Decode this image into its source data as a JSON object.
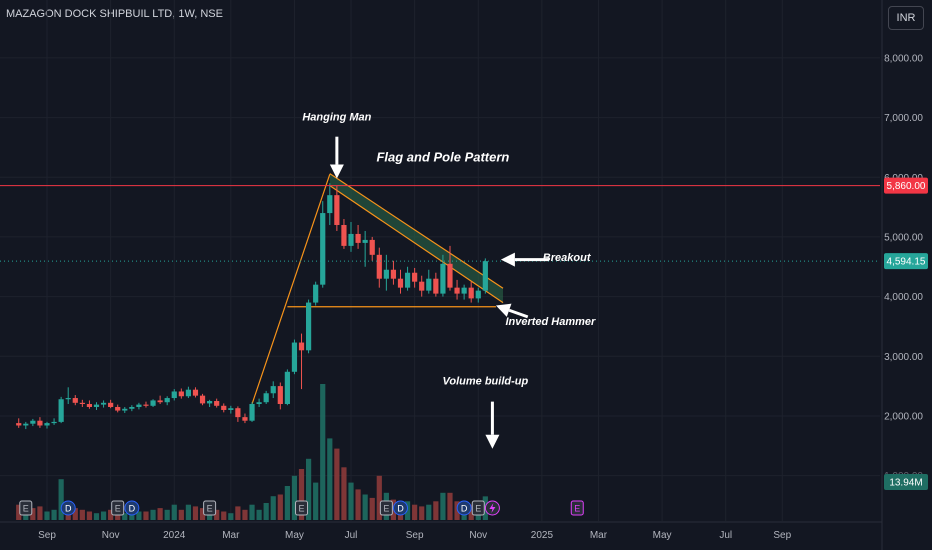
{
  "header": {
    "symbol_title": "MAZAGON DOCK SHIPBUIL LTD, 1W, NSE",
    "currency": "INR"
  },
  "colors": {
    "background": "#131722",
    "up": "#26a69a",
    "down": "#ef5350",
    "grid": "#1e222d",
    "resistance": "#f23645",
    "pattern": "#f7931a",
    "flag_fill": "#2b6b4a"
  },
  "chart_data": {
    "type": "candlestick",
    "interval": "1W",
    "ylim": [
      700,
      8500
    ],
    "y_ticks": [
      "8,000.00",
      "7,000.00",
      "6,000.00",
      "5,000.00",
      "4,000.00",
      "3,000.00",
      "2,000.00",
      "1,000.00"
    ],
    "x_tick_labels": [
      {
        "label": "Sep",
        "week": 0
      },
      {
        "label": "Nov",
        "week": 9
      },
      {
        "label": "2024",
        "week": 18
      },
      {
        "label": "Mar",
        "week": 26
      },
      {
        "label": "May",
        "week": 35
      },
      {
        "label": "Jul",
        "week": 43
      },
      {
        "label": "Sep",
        "week": 52
      },
      {
        "label": "Nov",
        "week": 61
      },
      {
        "label": "2025",
        "week": 70
      },
      {
        "label": "Mar",
        "week": 78
      },
      {
        "label": "May",
        "week": 87
      },
      {
        "label": "Jul",
        "week": 96
      },
      {
        "label": "Sep",
        "week": 104
      }
    ],
    "candles": [
      [
        -4,
        1880,
        1960,
        1800,
        1840
      ],
      [
        -3,
        1840,
        1900,
        1780,
        1870
      ],
      [
        -2,
        1870,
        1950,
        1830,
        1920
      ],
      [
        -1,
        1920,
        1980,
        1800,
        1840
      ],
      [
        0,
        1840,
        1900,
        1790,
        1880
      ],
      [
        1,
        1880,
        1960,
        1850,
        1900
      ],
      [
        2,
        1900,
        2320,
        1880,
        2280
      ],
      [
        3,
        2280,
        2480,
        2200,
        2300
      ],
      [
        4,
        2300,
        2350,
        2180,
        2220
      ],
      [
        5,
        2220,
        2270,
        2150,
        2200
      ],
      [
        6,
        2200,
        2260,
        2120,
        2150
      ],
      [
        7,
        2150,
        2230,
        2100,
        2190
      ],
      [
        8,
        2190,
        2260,
        2140,
        2220
      ],
      [
        9,
        2220,
        2270,
        2130,
        2150
      ],
      [
        10,
        2150,
        2190,
        2060,
        2090
      ],
      [
        11,
        2090,
        2150,
        2050,
        2120
      ],
      [
        12,
        2120,
        2180,
        2080,
        2150
      ],
      [
        13,
        2150,
        2220,
        2110,
        2190
      ],
      [
        14,
        2190,
        2240,
        2140,
        2170
      ],
      [
        15,
        2170,
        2280,
        2150,
        2260
      ],
      [
        16,
        2260,
        2340,
        2200,
        2230
      ],
      [
        17,
        2230,
        2330,
        2180,
        2300
      ],
      [
        18,
        2300,
        2450,
        2260,
        2410
      ],
      [
        19,
        2410,
        2460,
        2290,
        2330
      ],
      [
        20,
        2330,
        2490,
        2300,
        2440
      ],
      [
        21,
        2440,
        2480,
        2310,
        2340
      ],
      [
        22,
        2340,
        2370,
        2180,
        2210
      ],
      [
        23,
        2210,
        2270,
        2150,
        2250
      ],
      [
        24,
        2250,
        2290,
        2140,
        2170
      ],
      [
        25,
        2170,
        2210,
        2060,
        2100
      ],
      [
        26,
        2100,
        2170,
        2040,
        2130
      ],
      [
        27,
        2130,
        2160,
        1900,
        1980
      ],
      [
        28,
        1980,
        2040,
        1880,
        1920
      ],
      [
        29,
        1920,
        2230,
        1900,
        2200
      ],
      [
        30,
        2200,
        2290,
        2150,
        2230
      ],
      [
        31,
        2230,
        2420,
        2200,
        2380
      ],
      [
        32,
        2380,
        2580,
        2300,
        2500
      ],
      [
        33,
        2500,
        2560,
        2110,
        2200
      ],
      [
        34,
        2200,
        2780,
        2180,
        2740
      ],
      [
        35,
        2740,
        3280,
        2700,
        3230
      ],
      [
        36,
        3230,
        3380,
        2450,
        3100
      ],
      [
        37,
        3100,
        3950,
        3050,
        3900
      ],
      [
        38,
        3900,
        4250,
        3850,
        4200
      ],
      [
        39,
        4200,
        5600,
        4150,
        5400
      ],
      [
        40,
        5400,
        5900,
        5200,
        5700
      ],
      [
        41,
        5700,
        5860,
        5100,
        5200
      ],
      [
        42,
        5200,
        5300,
        4800,
        4850
      ],
      [
        43,
        4850,
        5250,
        4750,
        5050
      ],
      [
        44,
        5050,
        5200,
        4800,
        4900
      ],
      [
        45,
        4900,
        5100,
        4500,
        4950
      ],
      [
        46,
        4950,
        5000,
        4600,
        4700
      ],
      [
        47,
        4700,
        4820,
        4150,
        4300
      ],
      [
        48,
        4300,
        4700,
        4100,
        4450
      ],
      [
        49,
        4450,
        4600,
        4200,
        4300
      ],
      [
        50,
        4300,
        4450,
        4050,
        4150
      ],
      [
        51,
        4150,
        4500,
        4100,
        4400
      ],
      [
        52,
        4400,
        4480,
        4150,
        4250
      ],
      [
        53,
        4250,
        4350,
        4000,
        4100
      ],
      [
        54,
        4100,
        4450,
        4050,
        4300
      ],
      [
        55,
        4300,
        4400,
        4000,
        4050
      ],
      [
        56,
        4050,
        4700,
        4000,
        4550
      ],
      [
        57,
        4550,
        4850,
        4100,
        4150
      ],
      [
        58,
        4150,
        4280,
        3950,
        4050
      ],
      [
        59,
        4050,
        4200,
        3950,
        4150
      ],
      [
        60,
        4150,
        4250,
        3900,
        3970
      ],
      [
        61,
        3970,
        4150,
        3900,
        4100
      ],
      [
        62,
        4100,
        4640,
        4050,
        4594
      ]
    ],
    "volume": [
      [
        -4,
        0.9,
        0
      ],
      [
        -3,
        0.6,
        1
      ],
      [
        -2,
        0.7,
        0
      ],
      [
        -1,
        0.8,
        0
      ],
      [
        0,
        0.5,
        1
      ],
      [
        1,
        0.6,
        1
      ],
      [
        2,
        2.4,
        1
      ],
      [
        3,
        1.0,
        0
      ],
      [
        4,
        0.7,
        0
      ],
      [
        5,
        0.6,
        0
      ],
      [
        6,
        0.5,
        0
      ],
      [
        7,
        0.4,
        1
      ],
      [
        8,
        0.5,
        1
      ],
      [
        9,
        0.6,
        0
      ],
      [
        10,
        0.5,
        0
      ],
      [
        11,
        0.4,
        1
      ],
      [
        12,
        0.4,
        1
      ],
      [
        13,
        0.5,
        1
      ],
      [
        14,
        0.5,
        0
      ],
      [
        15,
        0.6,
        1
      ],
      [
        16,
        0.7,
        0
      ],
      [
        17,
        0.6,
        1
      ],
      [
        18,
        0.9,
        1
      ],
      [
        19,
        0.6,
        0
      ],
      [
        20,
        0.9,
        1
      ],
      [
        21,
        0.8,
        0
      ],
      [
        22,
        0.7,
        0
      ],
      [
        23,
        0.5,
        1
      ],
      [
        24,
        0.6,
        0
      ],
      [
        25,
        0.5,
        0
      ],
      [
        26,
        0.4,
        1
      ],
      [
        27,
        0.8,
        0
      ],
      [
        28,
        0.6,
        0
      ],
      [
        29,
        0.9,
        1
      ],
      [
        30,
        0.6,
        1
      ],
      [
        31,
        1.0,
        1
      ],
      [
        32,
        1.4,
        1
      ],
      [
        33,
        1.5,
        0
      ],
      [
        34,
        2.0,
        1
      ],
      [
        35,
        2.6,
        1
      ],
      [
        36,
        3.0,
        0
      ],
      [
        37,
        3.6,
        1
      ],
      [
        38,
        2.2,
        1
      ],
      [
        39,
        8.0,
        1
      ],
      [
        40,
        4.8,
        1
      ],
      [
        41,
        4.2,
        0
      ],
      [
        42,
        3.1,
        0
      ],
      [
        43,
        2.2,
        1
      ],
      [
        44,
        1.8,
        0
      ],
      [
        45,
        1.5,
        1
      ],
      [
        46,
        1.3,
        0
      ],
      [
        47,
        2.6,
        0
      ],
      [
        48,
        1.6,
        1
      ],
      [
        49,
        1.2,
        0
      ],
      [
        50,
        0.9,
        0
      ],
      [
        51,
        1.1,
        1
      ],
      [
        52,
        0.9,
        0
      ],
      [
        53,
        0.8,
        0
      ],
      [
        54,
        0.9,
        1
      ],
      [
        55,
        1.1,
        0
      ],
      [
        56,
        1.6,
        1
      ],
      [
        57,
        1.6,
        0
      ],
      [
        58,
        1.1,
        0
      ],
      [
        59,
        0.9,
        1
      ],
      [
        60,
        0.9,
        0
      ],
      [
        61,
        0.9,
        1
      ],
      [
        62,
        1.39,
        1
      ]
    ],
    "volume_tag": "13.94M",
    "events": [
      {
        "week": -3,
        "type": "E"
      },
      {
        "week": 3,
        "type": "D"
      },
      {
        "week": 10,
        "type": "E"
      },
      {
        "week": 12,
        "type": "D"
      },
      {
        "week": 23,
        "type": "E"
      },
      {
        "week": 36,
        "type": "E"
      },
      {
        "week": 48,
        "type": "E"
      },
      {
        "week": 50,
        "type": "D"
      },
      {
        "week": 59,
        "type": "D"
      },
      {
        "week": 61,
        "type": "E"
      },
      {
        "week": 63,
        "type": "S"
      },
      {
        "week": 75,
        "type": "E",
        "future": true
      }
    ],
    "resistance": 5860,
    "last_price": 4594.15,
    "price_tags": [
      {
        "label": "5,860.00",
        "value": 5860,
        "color": "#f23645"
      },
      {
        "label": "4,594.15",
        "value": 4594.15,
        "color": "#26a69a"
      }
    ],
    "pattern": {
      "pole": [
        [
          29,
          2200
        ],
        [
          40,
          6050
        ]
      ],
      "support": [
        [
          34,
          3830
        ],
        [
          63.5,
          3830
        ]
      ],
      "flag_upper": [
        [
          40,
          6060
        ],
        [
          64.5,
          4140
        ]
      ],
      "flag_lower": [
        [
          40,
          5860
        ],
        [
          64.5,
          3900
        ]
      ]
    },
    "annotations": [
      {
        "text": "Hanging Man",
        "week": 41,
        "price": 6950,
        "arrow_to": [
          41,
          5980
        ]
      },
      {
        "text": "Flag and Pole Pattern",
        "week": 56,
        "price": 6260
      },
      {
        "text": "Breakout",
        "week": 73.5,
        "price": 4600,
        "arrow_from": [
          71,
          4620
        ],
        "arrow_to": [
          64.2,
          4620
        ]
      },
      {
        "text": "Inverted Hammer",
        "week": 71.2,
        "price": 3520,
        "arrow_from": [
          68,
          3660
        ],
        "arrow_to": [
          63.5,
          3850
        ]
      },
      {
        "text": "Volume build-up",
        "week": 62,
        "price": 2530,
        "arrow_from": [
          63,
          2240
        ],
        "arrow_to": [
          63,
          1450
        ]
      }
    ]
  }
}
